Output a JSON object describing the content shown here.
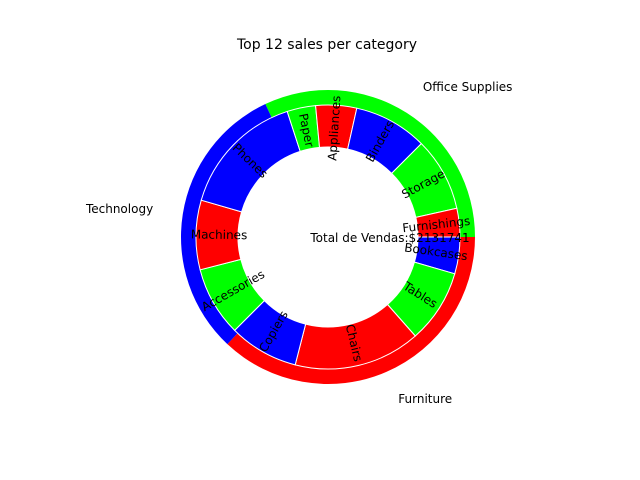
{
  "chart_data": {
    "type": "pie",
    "subtype": "nested-donut",
    "title": "Top 12 sales per category",
    "center_label": "Total de Vendas:$2131741",
    "outer_ring": [
      {
        "label": "Furniture",
        "value": 0.37,
        "color": "#ff0000"
      },
      {
        "label": "Technology",
        "value": 0.31,
        "color": "#0000ff"
      },
      {
        "label": "Office Supplies",
        "value": 0.32,
        "color": "#00ff00"
      }
    ],
    "inner_ring": [
      {
        "label": "Bookcases",
        "value": 0.045,
        "color": "#0000ff"
      },
      {
        "label": "Tables",
        "value": 0.09,
        "color": "#00ff00"
      },
      {
        "label": "Chairs",
        "value": 0.155,
        "color": "#ff0000"
      },
      {
        "label": "Copiers",
        "value": 0.085,
        "color": "#0000ff"
      },
      {
        "label": "Accessories",
        "value": 0.085,
        "color": "#00ff00"
      },
      {
        "label": "Machines",
        "value": 0.085,
        "color": "#ff0000"
      },
      {
        "label": "Phones",
        "value": 0.155,
        "color": "#0000ff"
      },
      {
        "label": "Paper",
        "value": 0.035,
        "color": "#00ff00"
      },
      {
        "label": "Appliances",
        "value": 0.05,
        "color": "#ff0000"
      },
      {
        "label": "Binders",
        "value": 0.09,
        "color": "#0000ff"
      },
      {
        "label": "Storage",
        "value": 0.09,
        "color": "#00ff00"
      },
      {
        "label": "Furnishings",
        "value": 0.035,
        "color": "#ff0000"
      }
    ],
    "start_angle_deg": 0,
    "direction": "clockwise",
    "legend": "none",
    "grid": false
  }
}
